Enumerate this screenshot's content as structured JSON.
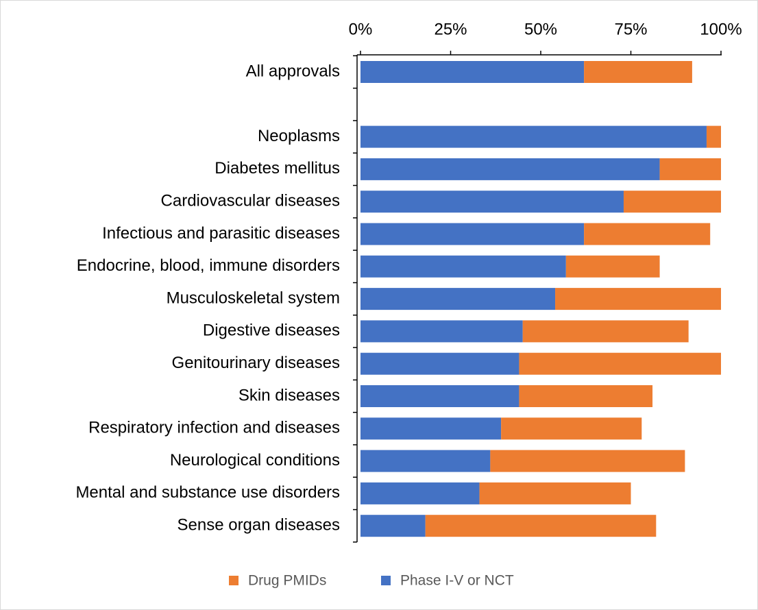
{
  "chart_data": {
    "type": "stacked-bar-horizontal",
    "categories": [
      "All approvals",
      null,
      "Neoplasms",
      "Diabetes mellitus",
      "Cardiovascular diseases",
      "Infectious and parasitic diseases",
      "Endocrine, blood, immune disorders",
      "Musculoskeletal system",
      "Digestive diseases",
      "Genitourinary diseases",
      "Skin diseases",
      "Respiratory infection and diseases",
      "Neurological conditions",
      "Mental and substance use disorders",
      "Sense organ diseases"
    ],
    "series": [
      {
        "name": "Phase I-V or NCT",
        "color": "#4472c4",
        "values": [
          62,
          null,
          96,
          83,
          73,
          62,
          57,
          54,
          45,
          44,
          44,
          39,
          36,
          33,
          18
        ]
      },
      {
        "name": "Drug PMIDs",
        "color": "#ed7d31",
        "values": [
          30,
          null,
          4,
          17,
          27,
          35,
          26,
          46,
          46,
          56,
          37,
          39,
          54,
          42,
          64
        ]
      }
    ],
    "xlim": [
      0,
      100
    ],
    "xticks": [
      {
        "value": 0,
        "label": "0%"
      },
      {
        "value": 25,
        "label": "25%"
      },
      {
        "value": 50,
        "label": "50%"
      },
      {
        "value": 75,
        "label": "75%"
      },
      {
        "value": 100,
        "label": "100%"
      }
    ],
    "legend": "bottom"
  }
}
